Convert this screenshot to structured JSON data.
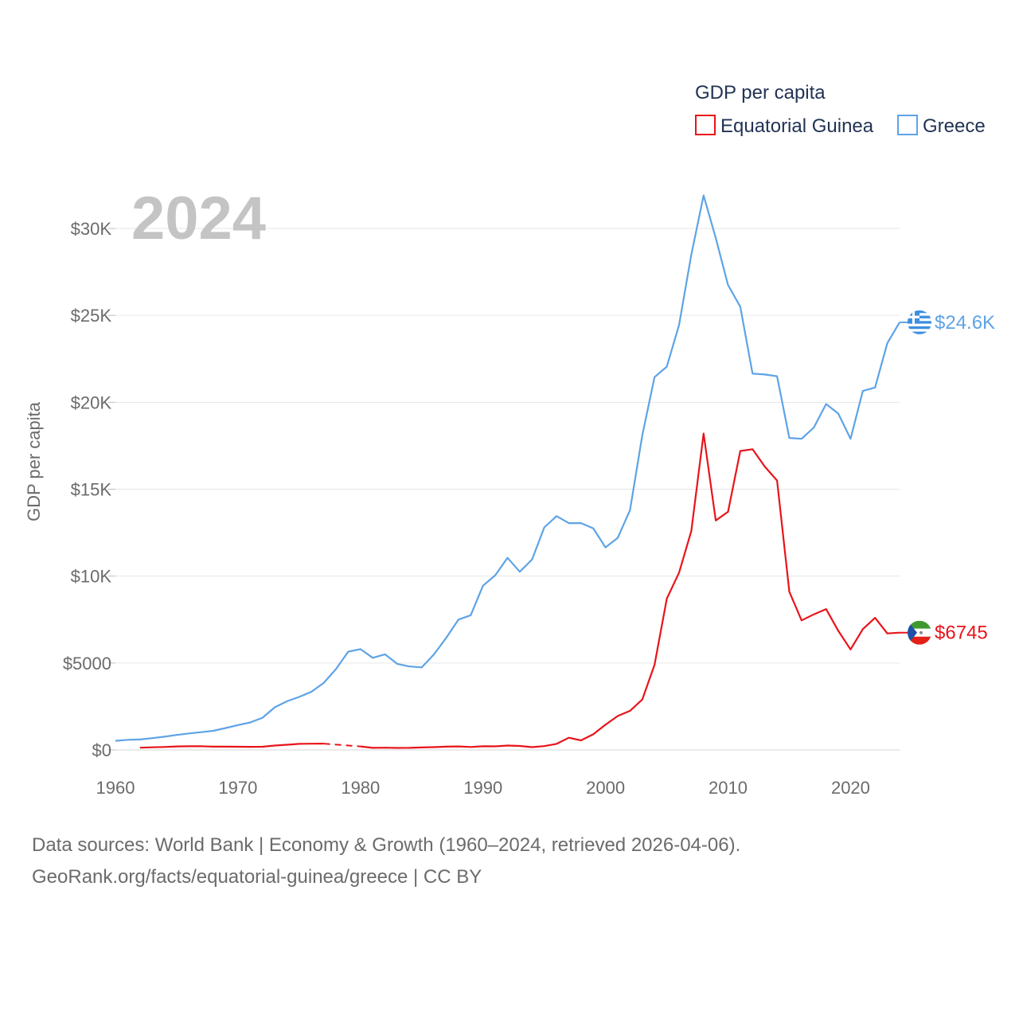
{
  "chart_data": {
    "type": "line",
    "title": "GDP per capita",
    "year_label": "2024",
    "ylabel": "GDP per capita",
    "xlabel": "",
    "xlim": [
      1960,
      2024
    ],
    "ylim": [
      0,
      33000
    ],
    "y_ticks": [
      0,
      5000,
      10000,
      15000,
      20000,
      25000,
      30000
    ],
    "y_tick_labels": [
      "$0",
      "$5000",
      "$10K",
      "$15K",
      "$20K",
      "$25K",
      "$30K"
    ],
    "x_ticks": [
      1960,
      1970,
      1980,
      1990,
      2000,
      2010,
      2020
    ],
    "x_tick_labels": [
      "1960",
      "1970",
      "1980",
      "1990",
      "2000",
      "2010",
      "2020"
    ],
    "gridlines": true,
    "legend_position": "top-right",
    "series": [
      {
        "name": "Equatorial Guinea",
        "color": "#e8141a",
        "end_label": "$6745",
        "flag": "equatorial-guinea-flag-icon",
        "gap_years": [
          [
            1977,
            1980
          ]
        ],
        "x": [
          1962,
          1963,
          1964,
          1965,
          1966,
          1967,
          1968,
          1969,
          1970,
          1971,
          1972,
          1973,
          1974,
          1975,
          1976,
          1977,
          1980,
          1981,
          1982,
          1983,
          1984,
          1985,
          1986,
          1987,
          1988,
          1989,
          1990,
          1991,
          1992,
          1993,
          1994,
          1995,
          1996,
          1997,
          1998,
          1999,
          2000,
          2001,
          2002,
          2003,
          2004,
          2005,
          2006,
          2007,
          2008,
          2009,
          2010,
          2011,
          2012,
          2013,
          2014,
          2015,
          2016,
          2017,
          2018,
          2019,
          2020,
          2021,
          2022,
          2023,
          2024
        ],
        "values": [
          130,
          150,
          170,
          200,
          210,
          210,
          190,
          190,
          185,
          180,
          185,
          250,
          300,
          350,
          355,
          360,
          200,
          120,
          130,
          115,
          120,
          140,
          160,
          190,
          200,
          170,
          210,
          205,
          250,
          230,
          160,
          220,
          350,
          700,
          550,
          900,
          1450,
          1950,
          2250,
          2900,
          4900,
          8700,
          10200,
          12600,
          18200,
          13200,
          13700,
          17200,
          17300,
          16300,
          15500,
          9100,
          7450,
          7800,
          8100,
          6850,
          5780,
          6950,
          7600,
          6700,
          6745
        ]
      },
      {
        "name": "Greece",
        "color": "#5ea3e6",
        "end_label": "$24.6K",
        "flag": "greece-flag-icon",
        "x": [
          1960,
          1961,
          1962,
          1963,
          1964,
          1965,
          1966,
          1967,
          1968,
          1969,
          1970,
          1971,
          1972,
          1973,
          1974,
          1975,
          1976,
          1977,
          1978,
          1979,
          1980,
          1981,
          1982,
          1983,
          1984,
          1985,
          1986,
          1987,
          1988,
          1989,
          1990,
          1991,
          1992,
          1993,
          1994,
          1995,
          1996,
          1997,
          1998,
          1999,
          2000,
          2001,
          2002,
          2003,
          2004,
          2005,
          2006,
          2007,
          2008,
          2009,
          2010,
          2011,
          2012,
          2013,
          2014,
          2015,
          2016,
          2017,
          2018,
          2019,
          2020,
          2021,
          2022,
          2023,
          2024
        ],
        "values": [
          520,
          580,
          600,
          680,
          760,
          860,
          950,
          1020,
          1100,
          1260,
          1430,
          1580,
          1850,
          2450,
          2800,
          3050,
          3350,
          3850,
          4650,
          5650,
          5800,
          5300,
          5500,
          4950,
          4800,
          4750,
          5500,
          6450,
          7500,
          7750,
          9450,
          10050,
          11050,
          10250,
          10950,
          12800,
          13450,
          13050,
          13050,
          12750,
          11650,
          12200,
          13800,
          18100,
          21450,
          22050,
          24450,
          28500,
          31900,
          29450,
          26750,
          25500,
          21650,
          21600,
          21500,
          17950,
          17900,
          18550,
          19900,
          19350,
          17900,
          20650,
          20850,
          23400,
          24600
        ]
      }
    ]
  },
  "source": {
    "line1": "Data sources: World Bank | Economy & Growth (1960–2024, retrieved 2026-04-06).",
    "line2": "GeoRank.org/facts/equatorial-guinea/greece | CC BY"
  }
}
